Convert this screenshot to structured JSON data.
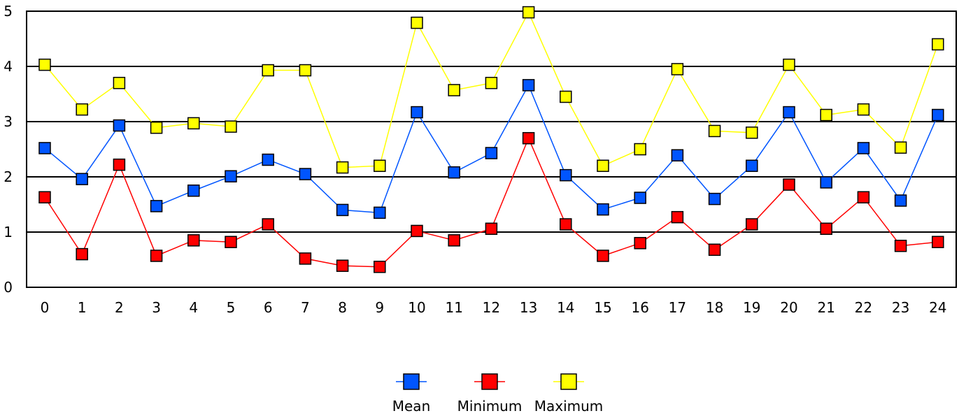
{
  "chart_data": {
    "type": "line",
    "categories": [
      "0",
      "1",
      "2",
      "3",
      "4",
      "5",
      "6",
      "7",
      "8",
      "9",
      "10",
      "11",
      "12",
      "13",
      "14",
      "15",
      "16",
      "17",
      "18",
      "19",
      "20",
      "21",
      "22",
      "23",
      "24"
    ],
    "ylim": [
      0,
      5
    ],
    "yticks": [
      "0",
      "1",
      "2",
      "3",
      "4",
      "5"
    ],
    "grid": true,
    "legend_position": "bottom-center",
    "series": [
      {
        "name": "Mean",
        "color": "#0055ff",
        "values": [
          2.52,
          1.96,
          2.93,
          1.47,
          1.75,
          2.01,
          2.31,
          2.05,
          1.4,
          1.35,
          3.17,
          2.08,
          2.43,
          3.66,
          2.03,
          1.41,
          1.62,
          2.39,
          1.6,
          2.2,
          3.17,
          1.9,
          2.52,
          1.57,
          3.12
        ]
      },
      {
        "name": "Minimum",
        "color": "#ff0000",
        "values": [
          1.63,
          0.6,
          2.22,
          0.57,
          0.85,
          0.82,
          1.14,
          0.52,
          0.39,
          0.37,
          1.02,
          0.85,
          1.06,
          2.7,
          1.14,
          0.57,
          0.8,
          1.27,
          0.68,
          1.14,
          1.86,
          1.06,
          1.63,
          0.75,
          0.82
        ]
      },
      {
        "name": "Maximum",
        "color": "#ffff00",
        "values": [
          4.03,
          3.22,
          3.7,
          2.89,
          2.97,
          2.91,
          3.93,
          3.93,
          2.17,
          2.2,
          4.79,
          3.57,
          3.7,
          4.98,
          3.45,
          2.2,
          2.5,
          3.95,
          2.83,
          2.8,
          4.03,
          3.12,
          3.22,
          2.53,
          4.4
        ]
      }
    ]
  }
}
